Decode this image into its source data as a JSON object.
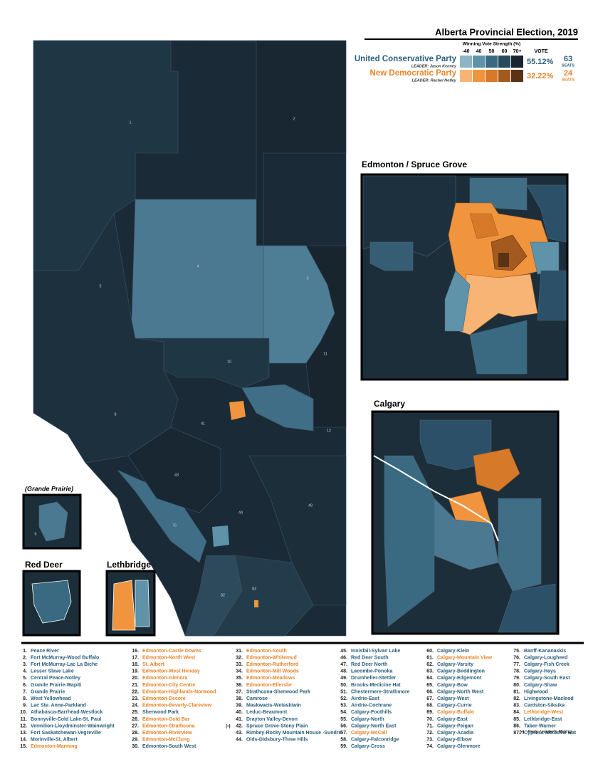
{
  "title": "Alberta Provincial Election, 2019",
  "legend": {
    "heading": "Winning Vote Strength (%)",
    "bins": [
      "-40",
      "40",
      "50",
      "60",
      "70+"
    ],
    "vote_heading": "VOTE",
    "parties": [
      {
        "name": "United Conservative Party",
        "leader": "LEADER: Jason Kenney",
        "vote": "55.12%",
        "seats": "63",
        "seats_label": "SEATS",
        "color": "#2b5f7c",
        "colors": [
          "#8db5c6",
          "#5f93aa",
          "#3a6a82",
          "#284a5c",
          "#18252e"
        ]
      },
      {
        "name": "New Democratic Party",
        "leader": "LEADER: Rachel Notley",
        "vote": "32.22%",
        "seats": "24",
        "seats_label": "SEATS",
        "color": "#e8842a",
        "colors": [
          "#f7b474",
          "#f0943e",
          "#d67a2a",
          "#a45a1e",
          "#5a3315"
        ]
      }
    ]
  },
  "insets": [
    "Edmonton / Spruce Grove",
    "Calgary",
    "(Grande Prairie)",
    "Red Deer",
    "Lethbridge"
  ],
  "map_labels": [
    "1",
    "2",
    "3",
    "4",
    "5",
    "6",
    "8",
    "10",
    "11",
    "12",
    "41",
    "43",
    "44",
    "49",
    "75",
    "82",
    "83"
  ],
  "ridings": [
    {
      "number": "1.",
      "name": "Peace River",
      "color": "#2b5f7c"
    },
    {
      "number": "2.",
      "name": "Fort McMurray-Wood Buffalo",
      "color": "#2b5f7c"
    },
    {
      "number": "3.",
      "name": "Fort McMurray-Lac La Biche",
      "color": "#2b5f7c"
    },
    {
      "number": "4.",
      "name": "Lesser Slave Lake",
      "color": "#2b5f7c"
    },
    {
      "number": "5.",
      "name": "Central Peace-Notley",
      "color": "#2b5f7c"
    },
    {
      "number": "6.",
      "name": "Grande Prairie-Wapiti",
      "color": "#2b5f7c"
    },
    {
      "number": "7.",
      "name": "Grande Prairie",
      "color": "#2b5f7c"
    },
    {
      "number": "8.",
      "name": "West Yellowhead",
      "color": "#2b5f7c"
    },
    {
      "number": "9.",
      "name": "Lac Ste. Anne-Parkland",
      "color": "#2b5f7c"
    },
    {
      "number": "10.",
      "name": "Athabasca-Barrhead-Westlock",
      "color": "#2b5f7c"
    },
    {
      "number": "11.",
      "name": "Bonnyville-Cold Lake-St. Paul",
      "color": "#2b5f7c"
    },
    {
      "number": "12.",
      "name": "Vermilion-Lloydminster-Wainwright",
      "color": "#2b5f7c"
    },
    {
      "number": "13.",
      "name": "Fort Saskatchewan-Vegreville",
      "color": "#2b5f7c"
    },
    {
      "number": "14.",
      "name": "Morinville-St. Albert",
      "color": "#2b5f7c"
    },
    {
      "number": "15.",
      "name": "Edmonton-Manning",
      "color": "#e8842a"
    },
    {
      "number": "16.",
      "name": "Edmonton-Castle Downs",
      "color": "#e8842a"
    },
    {
      "number": "17.",
      "name": "Edmonton-North West",
      "color": "#e8842a"
    },
    {
      "number": "18.",
      "name": "St. Albert",
      "color": "#e8842a"
    },
    {
      "number": "19.",
      "name": "Edmonton-West Henday",
      "color": "#e8842a"
    },
    {
      "number": "20.",
      "name": "Edmonton-Glenora",
      "color": "#e8842a"
    },
    {
      "number": "21.",
      "name": "Edmonton-City Centre",
      "color": "#e8842a"
    },
    {
      "number": "22.",
      "name": "Edmonton-Highlands-Norwood",
      "color": "#e8842a"
    },
    {
      "number": "23.",
      "name": "Edmonton-Decore",
      "color": "#e8842a"
    },
    {
      "number": "24.",
      "name": "Edmonton-Beverly-Clareview",
      "color": "#e8842a"
    },
    {
      "number": "25.",
      "name": "Sherwood Park",
      "color": "#2b5f7c"
    },
    {
      "number": "26.",
      "name": "Edmonton-Gold Bar",
      "color": "#e8842a"
    },
    {
      "number": "27.",
      "name": "Edmonton-Strathcona",
      "color": "#e8842a",
      "marker": "(•)"
    },
    {
      "number": "28.",
      "name": "Edmonton-Riverview",
      "color": "#e8842a"
    },
    {
      "number": "29.",
      "name": "Edmonton-McClung",
      "color": "#e8842a"
    },
    {
      "number": "30.",
      "name": "Edmonton-South West",
      "color": "#2b5f7c"
    },
    {
      "number": "31.",
      "name": "Edmonton-South",
      "color": "#e8842a"
    },
    {
      "number": "32.",
      "name": "Edmonton-Whitemud",
      "color": "#e8842a"
    },
    {
      "number": "33.",
      "name": "Edmonton-Rutherford",
      "color": "#e8842a"
    },
    {
      "number": "34.",
      "name": "Edmonton-Mill Woods",
      "color": "#e8842a"
    },
    {
      "number": "35.",
      "name": "Edmonton-Meadows",
      "color": "#e8842a"
    },
    {
      "number": "36.",
      "name": "Edmonton-Ellerslie",
      "color": "#e8842a"
    },
    {
      "number": "37.",
      "name": "Strathcona-Sherwood Park",
      "color": "#2b5f7c"
    },
    {
      "number": "38.",
      "name": "Camrose",
      "color": "#2b5f7c"
    },
    {
      "number": "39.",
      "name": "Maskwacis-Wetaskiwin",
      "color": "#2b5f7c"
    },
    {
      "number": "40.",
      "name": "Leduc-Beaumont",
      "color": "#2b5f7c"
    },
    {
      "number": "41.",
      "name": "Drayton Valley-Devon",
      "color": "#2b5f7c"
    },
    {
      "number": "42.",
      "name": "Spruce Grove-Stony Plain",
      "color": "#2b5f7c"
    },
    {
      "number": "43.",
      "name": "Rimbey-Rocky Mountain House -Sundre",
      "color": "#2b5f7c"
    },
    {
      "number": "44.",
      "name": "Olds-Didsbury-Three Hills",
      "color": "#2b5f7c"
    },
    {
      "number": "45.",
      "name": "Innisfail-Sylvan Lake",
      "color": "#2b5f7c"
    },
    {
      "number": "46.",
      "name": "Red Deer South",
      "color": "#2b5f7c"
    },
    {
      "number": "47.",
      "name": "Red Deer North",
      "color": "#2b5f7c"
    },
    {
      "number": "48.",
      "name": "Lacombe-Ponoka",
      "color": "#2b5f7c"
    },
    {
      "number": "49.",
      "name": "Drumheller-Stettler",
      "color": "#2b5f7c"
    },
    {
      "number": "50.",
      "name": "Brooks-Medicine Hat",
      "color": "#2b5f7c"
    },
    {
      "number": "51.",
      "name": "Chestermere-Strathmore",
      "color": "#2b5f7c"
    },
    {
      "number": "52.",
      "name": "Airdrie-East",
      "color": "#2b5f7c"
    },
    {
      "number": "53.",
      "name": "Airdrie-Cochrane",
      "color": "#2b5f7c"
    },
    {
      "number": "54.",
      "name": "Calgary-Foothills",
      "color": "#2b5f7c"
    },
    {
      "number": "55.",
      "name": "Calgary-North",
      "color": "#2b5f7c"
    },
    {
      "number": "56.",
      "name": "Calgary-North East",
      "color": "#2b5f7c"
    },
    {
      "number": "57.",
      "name": "Calgary-McCall",
      "color": "#e8842a"
    },
    {
      "number": "58.",
      "name": "Calgary-Falconridge",
      "color": "#2b5f7c"
    },
    {
      "number": "59.",
      "name": "Calgary-Cross",
      "color": "#2b5f7c"
    },
    {
      "number": "60.",
      "name": "Calgary-Klein",
      "color": "#2b5f7c"
    },
    {
      "number": "61.",
      "name": "Calgary-Mountain View",
      "color": "#e8842a"
    },
    {
      "number": "62.",
      "name": "Calgary-Varsity",
      "color": "#2b5f7c"
    },
    {
      "number": "63.",
      "name": "Calgary-Beddington",
      "color": "#2b5f7c"
    },
    {
      "number": "64.",
      "name": "Calgary-Edgemont",
      "color": "#2b5f7c"
    },
    {
      "number": "65.",
      "name": "Calgary-Bow",
      "color": "#2b5f7c"
    },
    {
      "number": "66.",
      "name": "Calgary-North West",
      "color": "#2b5f7c"
    },
    {
      "number": "67.",
      "name": "Calgary-West",
      "color": "#2b5f7c"
    },
    {
      "number": "68.",
      "name": "Calgary-Currie",
      "color": "#2b5f7c"
    },
    {
      "number": "69.",
      "name": "Calgary-Buffalo",
      "color": "#e8842a"
    },
    {
      "number": "70.",
      "name": "Calgary-East",
      "color": "#2b5f7c"
    },
    {
      "number": "71.",
      "name": "Calgary-Peigan",
      "color": "#2b5f7c"
    },
    {
      "number": "72.",
      "name": "Calgary-Acadia",
      "color": "#2b5f7c"
    },
    {
      "number": "73.",
      "name": "Calgary-Elbow",
      "color": "#2b5f7c"
    },
    {
      "number": "74.",
      "name": "Calgary-Glenmore",
      "color": "#2b5f7c"
    },
    {
      "number": "75.",
      "name": "Banff-Kananaskis",
      "color": "#2b5f7c"
    },
    {
      "number": "76.",
      "name": "Calgary-Lougheed",
      "color": "#2b5f7c",
      "marker": "(•)"
    },
    {
      "number": "77.",
      "name": "Calgary-Fish Creek",
      "color": "#2b5f7c"
    },
    {
      "number": "78.",
      "name": "Calgary-Hays",
      "color": "#2b5f7c"
    },
    {
      "number": "79.",
      "name": "Calgary-South East",
      "color": "#2b5f7c"
    },
    {
      "number": "80.",
      "name": "Calgary-Shaw",
      "color": "#2b5f7c"
    },
    {
      "number": "81.",
      "name": "Highwood",
      "color": "#2b5f7c"
    },
    {
      "number": "82.",
      "name": "Livingstone-Macleod",
      "color": "#2b5f7c"
    },
    {
      "number": "83.",
      "name": "Cardston-Siksika",
      "color": "#2b5f7c"
    },
    {
      "number": "84.",
      "name": "Lethbridge-West",
      "color": "#e8842a"
    },
    {
      "number": "85.",
      "name": "Lethbridge-East",
      "color": "#2b5f7c"
    },
    {
      "number": "86.",
      "name": "Taber-Warner",
      "color": "#2b5f7c"
    },
    {
      "number": "87.",
      "name": "Cypress-Medicine Hat",
      "color": "#2b5f7c"
    }
  ],
  "footnote": {
    "marker": "(•)",
    "text": "Party Leader's Riding"
  }
}
